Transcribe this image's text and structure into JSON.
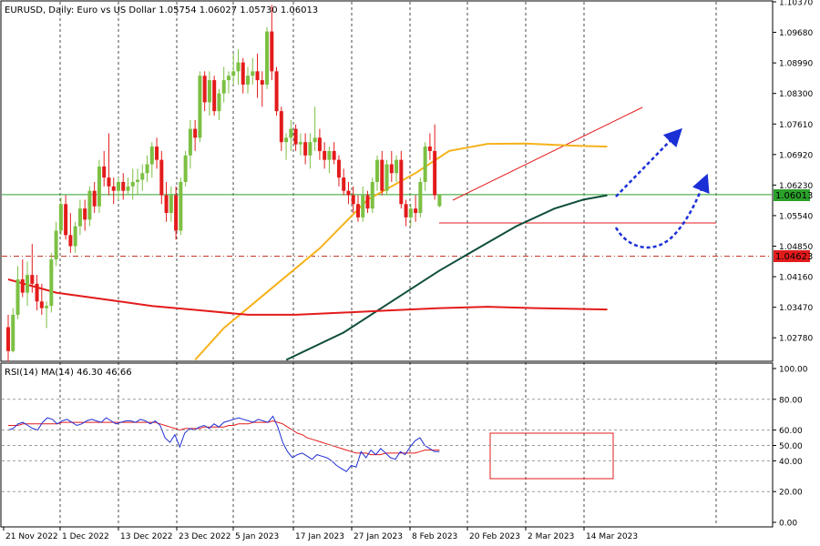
{
  "header": {
    "symbol_line": "EURUSD, Daily:  Euro vs US Dollar  1.05754 1.06027 1.05730 1.06013"
  },
  "rsi_header": "RSI(14) MA(14) 46.30 46.66",
  "colors": {
    "bull": "#7cc043",
    "bear": "#e31b1b",
    "ma_fast": "#f5b21a",
    "ma_mid": "#0f4d3c",
    "ma_slow": "#e31b1b",
    "rsi": "#1f2fd6",
    "rsi_ma": "#e31b1b",
    "price_line": "#2ca02c",
    "level_line": "#c0392b",
    "arrow": "#1b2fd6"
  },
  "current_price_label": "1.06013",
  "level_label": "1.04623",
  "chart_data": {
    "type": "candlestick",
    "title": "EURUSD, Daily: Euro vs US Dollar",
    "price_axis": {
      "ticks": [
        "1.10370",
        "1.09680",
        "1.08990",
        "1.08300",
        "1.07610",
        "1.06920",
        "1.06230",
        "1.05540",
        "1.04850",
        "1.04160",
        "1.03470",
        "1.02780"
      ],
      "ylim": [
        1.0227,
        1.1037
      ]
    },
    "x_labels": [
      "21 Nov 2022",
      "1 Dec 2022",
      "13 Dec 2022",
      "23 Dec 2022",
      "5 Jan 2023",
      "17 Jan 2023",
      "27 Jan 2023",
      "8 Feb 2023",
      "20 Feb 2023",
      "2 Mar 2023",
      "14 Mar 2023"
    ],
    "candles": [
      [
        1.0302,
        1.033,
        1.0224,
        1.0248
      ],
      [
        1.0248,
        1.0345,
        1.0245,
        1.033
      ],
      [
        1.033,
        1.044,
        1.032,
        1.041
      ],
      [
        1.041,
        1.0455,
        1.037,
        1.038
      ],
      [
        1.038,
        1.045,
        1.035,
        1.042
      ],
      [
        1.042,
        1.049,
        1.038,
        1.04
      ],
      [
        1.04,
        1.042,
        1.034,
        1.036
      ],
      [
        1.036,
        1.04,
        1.033,
        1.0345
      ],
      [
        1.0345,
        1.036,
        1.03,
        1.035
      ],
      [
        1.035,
        1.047,
        1.0335,
        1.0455
      ],
      [
        1.0455,
        1.054,
        1.044,
        1.052
      ],
      [
        1.052,
        1.0595,
        1.051,
        1.058
      ],
      [
        1.058,
        1.06,
        1.05,
        1.051
      ],
      [
        1.051,
        1.056,
        1.047,
        1.0485
      ],
      [
        1.0485,
        1.054,
        1.047,
        1.053
      ],
      [
        1.053,
        1.059,
        1.051,
        1.057
      ],
      [
        1.057,
        1.059,
        1.052,
        1.0545
      ],
      [
        1.0545,
        1.062,
        1.053,
        1.061
      ],
      [
        1.061,
        1.063,
        1.056,
        1.0575
      ],
      [
        1.0575,
        1.068,
        1.056,
        1.0665
      ],
      [
        1.0665,
        1.07,
        1.062,
        1.064
      ],
      [
        1.064,
        1.074,
        1.06,
        1.062
      ],
      [
        1.062,
        1.064,
        1.058,
        1.061
      ],
      [
        1.061,
        1.064,
        1.059,
        1.063
      ],
      [
        1.063,
        1.065,
        1.059,
        1.061
      ],
      [
        1.061,
        1.064,
        1.06,
        1.062
      ],
      [
        1.062,
        1.066,
        1.059,
        1.063
      ],
      [
        1.063,
        1.066,
        1.06,
        1.0635
      ],
      [
        1.0635,
        1.067,
        1.061,
        1.065
      ],
      [
        1.065,
        1.069,
        1.063,
        1.067
      ],
      [
        1.067,
        1.072,
        1.064,
        1.071
      ],
      [
        1.071,
        1.073,
        1.066,
        1.068
      ],
      [
        1.068,
        1.07,
        1.058,
        1.06
      ],
      [
        1.06,
        1.063,
        1.054,
        1.056
      ],
      [
        1.056,
        1.062,
        1.054,
        1.06
      ],
      [
        1.06,
        1.062,
        1.05,
        1.052
      ],
      [
        1.052,
        1.064,
        1.051,
        1.063
      ],
      [
        1.063,
        1.07,
        1.062,
        1.069
      ],
      [
        1.069,
        1.077,
        1.066,
        1.075
      ],
      [
        1.075,
        1.077,
        1.07,
        1.073
      ],
      [
        1.073,
        1.088,
        1.072,
        1.087
      ],
      [
        1.087,
        1.088,
        1.079,
        1.081
      ],
      [
        1.081,
        1.088,
        1.078,
        1.086
      ],
      [
        1.086,
        1.087,
        1.078,
        1.079
      ],
      [
        1.079,
        1.084,
        1.077,
        1.083
      ],
      [
        1.083,
        1.089,
        1.081,
        1.086
      ],
      [
        1.086,
        1.088,
        1.083,
        1.087
      ],
      [
        1.087,
        1.092,
        1.085,
        1.088
      ],
      [
        1.088,
        1.093,
        1.085,
        1.09
      ],
      [
        1.09,
        1.091,
        1.083,
        1.085
      ],
      [
        1.085,
        1.089,
        1.083,
        1.087
      ],
      [
        1.087,
        1.091,
        1.085,
        1.088
      ],
      [
        1.088,
        1.092,
        1.082,
        1.086
      ],
      [
        1.086,
        1.088,
        1.08,
        1.085
      ],
      [
        1.085,
        1.098,
        1.084,
        1.097
      ],
      [
        1.097,
        1.103,
        1.086,
        1.088
      ],
      [
        1.088,
        1.089,
        1.078,
        1.079
      ],
      [
        1.079,
        1.08,
        1.07,
        1.072
      ],
      [
        1.072,
        1.074,
        1.068,
        1.073
      ],
      [
        1.073,
        1.077,
        1.07,
        1.075
      ],
      [
        1.075,
        1.076,
        1.07,
        1.0715
      ],
      [
        1.0715,
        1.074,
        1.069,
        1.072
      ],
      [
        1.072,
        1.074,
        1.067,
        1.069
      ],
      [
        1.069,
        1.074,
        1.066,
        1.072
      ],
      [
        1.072,
        1.08,
        1.07,
        1.073
      ],
      [
        1.073,
        1.075,
        1.068,
        1.07
      ],
      [
        1.07,
        1.072,
        1.066,
        1.068
      ],
      [
        1.068,
        1.071,
        1.065,
        1.07
      ],
      [
        1.07,
        1.072,
        1.067,
        1.068
      ],
      [
        1.068,
        1.069,
        1.062,
        1.064
      ],
      [
        1.064,
        1.066,
        1.06,
        1.061
      ],
      [
        1.061,
        1.063,
        1.058,
        1.06
      ],
      [
        1.06,
        1.062,
        1.056,
        1.058
      ],
      [
        1.058,
        1.06,
        1.054,
        1.055
      ],
      [
        1.055,
        1.062,
        1.054,
        1.06
      ],
      [
        1.06,
        1.061,
        1.056,
        1.057
      ],
      [
        1.057,
        1.064,
        1.056,
        1.063
      ],
      [
        1.063,
        1.069,
        1.061,
        1.068
      ],
      [
        1.068,
        1.07,
        1.06,
        1.061
      ],
      [
        1.061,
        1.068,
        1.06,
        1.067
      ],
      [
        1.067,
        1.07,
        1.063,
        1.065
      ],
      [
        1.065,
        1.069,
        1.063,
        1.068
      ],
      [
        1.068,
        1.07,
        1.057,
        1.058
      ],
      [
        1.058,
        1.059,
        1.053,
        1.055
      ],
      [
        1.055,
        1.058,
        1.053,
        1.057
      ],
      [
        1.057,
        1.06,
        1.054,
        1.056
      ],
      [
        1.056,
        1.064,
        1.055,
        1.063
      ],
      [
        1.063,
        1.072,
        1.061,
        1.071
      ],
      [
        1.071,
        1.074,
        1.068,
        1.07
      ],
      [
        1.07,
        1.076,
        1.059,
        1.06
      ],
      [
        1.05754,
        1.06027,
        1.0573,
        1.06013
      ]
    ],
    "moving_averages": [
      {
        "key": "fast",
        "points": [
          [
            39,
            1.0228
          ],
          [
            45,
            1.03
          ],
          [
            55,
            1.039
          ],
          [
            65,
            1.048
          ],
          [
            75,
            1.059
          ],
          [
            85,
            1.065
          ],
          [
            92,
            1.07
          ],
          [
            100,
            1.0716
          ],
          [
            108,
            1.0717
          ],
          [
            118,
            1.0712
          ],
          [
            125,
            1.071
          ]
        ]
      },
      {
        "key": "mid",
        "points": [
          [
            58,
            1.0228
          ],
          [
            70,
            1.029
          ],
          [
            80,
            1.036
          ],
          [
            90,
            1.043
          ],
          [
            98,
            1.048
          ],
          [
            106,
            1.053
          ],
          [
            114,
            1.057
          ],
          [
            120,
            1.059
          ],
          [
            125,
            1.06
          ]
        ]
      },
      {
        "key": "slow",
        "points": [
          [
            0,
            1.041
          ],
          [
            10,
            1.038
          ],
          [
            20,
            1.0365
          ],
          [
            30,
            1.035
          ],
          [
            40,
            1.034
          ],
          [
            50,
            1.033
          ],
          [
            60,
            1.033
          ],
          [
            70,
            1.0335
          ],
          [
            80,
            1.034
          ],
          [
            90,
            1.0345
          ],
          [
            100,
            1.0348
          ],
          [
            110,
            1.0345
          ],
          [
            125,
            1.0342
          ]
        ]
      }
    ],
    "drawn_levels": [
      {
        "name": "current-price-line",
        "value": 1.06013
      },
      {
        "name": "support-line",
        "value": 1.0548
      },
      {
        "name": "dashed-level",
        "value": 1.04623
      }
    ],
    "rsi": {
      "ticks": [
        "100.00",
        "80.00",
        "60.00",
        "50.00",
        "40.00",
        "20.00",
        "0.00"
      ],
      "ylim": [
        0,
        100
      ],
      "values": [
        60,
        61,
        64,
        65,
        63,
        61,
        60,
        65,
        68,
        67,
        64,
        66,
        67,
        65,
        63,
        64,
        66,
        67,
        66,
        65,
        68,
        66,
        64,
        65,
        66,
        66,
        65,
        67,
        66,
        64,
        66,
        63,
        55,
        52,
        57,
        49,
        58,
        61,
        60,
        62,
        63,
        61,
        64,
        62,
        65,
        66,
        67,
        68,
        67,
        66,
        65,
        67,
        66,
        65,
        69,
        62,
        52,
        46,
        42,
        44,
        45,
        43,
        41,
        44,
        43,
        42,
        40,
        37,
        35,
        33,
        37,
        36,
        46,
        42,
        47,
        44,
        48,
        45,
        42,
        41,
        46,
        44,
        49,
        53,
        55,
        50,
        48,
        46,
        46
      ],
      "ma_values": [
        63,
        63,
        63,
        64,
        64,
        64,
        64,
        64,
        64,
        64,
        64,
        65,
        65,
        65,
        65,
        65,
        65,
        65,
        65,
        65,
        65,
        65,
        65,
        65,
        65,
        65,
        65,
        65,
        65,
        65,
        65,
        64,
        63,
        62,
        61,
        60,
        61,
        61,
        61,
        61,
        62,
        62,
        62,
        62,
        62,
        63,
        63,
        64,
        64,
        64,
        65,
        65,
        65,
        65,
        66,
        65,
        64,
        62,
        60,
        58,
        57,
        55,
        54,
        53,
        52,
        51,
        50,
        49,
        48,
        47,
        46,
        45,
        45,
        45,
        44,
        44,
        44,
        45,
        45,
        45,
        45,
        45,
        45,
        45,
        46,
        47,
        47,
        47,
        47
      ]
    }
  }
}
